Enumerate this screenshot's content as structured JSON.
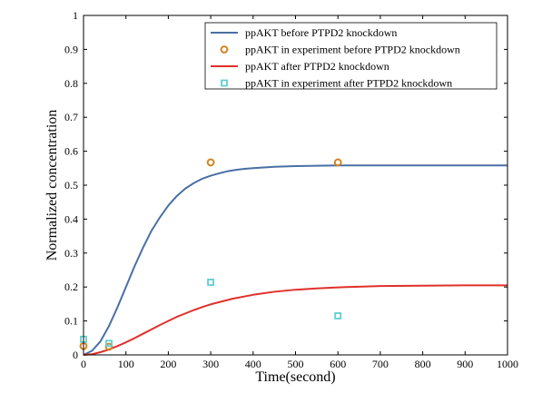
{
  "chart_data": {
    "type": "line",
    "title": "",
    "xlabel": "Time(second)",
    "ylabel": "Normalized concentration",
    "xlim": [
      0,
      1000
    ],
    "ylim": [
      0,
      1
    ],
    "grid": false,
    "legend_position": "top-right",
    "x_ticks": [
      0,
      100,
      200,
      300,
      400,
      500,
      600,
      700,
      800,
      900,
      1000
    ],
    "y_ticks": [
      0,
      0.1,
      0.2,
      0.3,
      0.4,
      0.5,
      0.6,
      0.7,
      0.8,
      0.9,
      1
    ],
    "x_tick_labels": [
      "0",
      "100",
      "200",
      "300",
      "400",
      "500",
      "600",
      "700",
      "800",
      "900",
      "1000"
    ],
    "y_tick_labels": [
      "0",
      "0.1",
      "0.2",
      "0.3",
      "0.4",
      "0.5",
      "0.6",
      "0.7",
      "0.8",
      "0.9",
      "1"
    ],
    "series": [
      {
        "name": "ppAKT  before  PTPD2 knockdown",
        "kind": "line",
        "color": "#4a6fa5",
        "x": [
          0,
          20,
          40,
          60,
          80,
          100,
          120,
          140,
          160,
          180,
          200,
          220,
          240,
          260,
          280,
          300,
          320,
          340,
          360,
          380,
          400,
          450,
          500,
          550,
          600,
          650,
          700,
          800,
          900,
          1000
        ],
        "y": [
          0,
          0.012,
          0.04,
          0.085,
          0.14,
          0.2,
          0.26,
          0.315,
          0.365,
          0.405,
          0.44,
          0.468,
          0.49,
          0.506,
          0.519,
          0.528,
          0.535,
          0.541,
          0.545,
          0.548,
          0.55,
          0.554,
          0.556,
          0.557,
          0.558,
          0.558,
          0.558,
          0.558,
          0.558,
          0.558
        ]
      },
      {
        "name": "ppAKT in experiment  before  PTPD2 knockdown",
        "kind": "marker",
        "marker": "circle",
        "color": "#d4841e",
        "x": [
          0,
          60,
          300,
          600
        ],
        "y": [
          0.026,
          0.024,
          0.567,
          0.567
        ]
      },
      {
        "name": "ppAKT after  PTPD2 knockdown",
        "kind": "line",
        "color": "#e0302a",
        "x": [
          0,
          20,
          40,
          60,
          80,
          100,
          120,
          140,
          160,
          180,
          200,
          220,
          240,
          260,
          280,
          300,
          350,
          400,
          450,
          500,
          550,
          600,
          650,
          700,
          800,
          900,
          1000
        ],
        "y": [
          0,
          0.002,
          0.008,
          0.016,
          0.026,
          0.037,
          0.049,
          0.062,
          0.075,
          0.088,
          0.1,
          0.112,
          0.122,
          0.132,
          0.141,
          0.149,
          0.165,
          0.177,
          0.186,
          0.192,
          0.196,
          0.199,
          0.201,
          0.203,
          0.204,
          0.205,
          0.205
        ]
      },
      {
        "name": "ppAKT in experiment after  PTPD2 knockdown",
        "kind": "marker",
        "marker": "square",
        "color": "#5fcfcf",
        "x": [
          0,
          60,
          300,
          600
        ],
        "y": [
          0.046,
          0.034,
          0.214,
          0.115
        ]
      }
    ]
  }
}
